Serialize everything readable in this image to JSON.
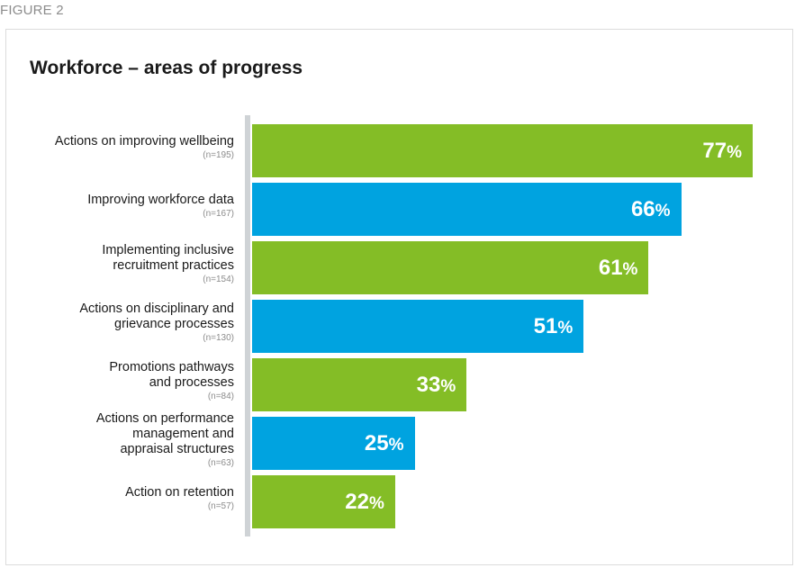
{
  "figure_label": "FIGURE 2",
  "chart_data": {
    "type": "bar",
    "orientation": "horizontal",
    "title": "Workforce – areas of progress",
    "xlim": [
      0,
      100
    ],
    "grid": false,
    "value_suffix": "%",
    "categories": [
      {
        "label_lines": [
          "Actions on improving wellbeing"
        ],
        "n": "(n=195)",
        "value": 77,
        "value_label": "77",
        "color": "#84bd26"
      },
      {
        "label_lines": [
          "Improving workforce data"
        ],
        "n": "(n=167)",
        "value": 66,
        "value_label": "66",
        "color": "#00a3e0"
      },
      {
        "label_lines": [
          "Implementing inclusive",
          "recruitment practices"
        ],
        "n": "(n=154)",
        "value": 61,
        "value_label": "61",
        "color": "#84bd26"
      },
      {
        "label_lines": [
          "Actions on disciplinary and",
          "grievance processes"
        ],
        "n": "(n=130)",
        "value": 51,
        "value_label": "51",
        "color": "#00a3e0"
      },
      {
        "label_lines": [
          "Promotions pathways",
          "and processes"
        ],
        "n": "(n=84)",
        "value": 33,
        "value_label": "33",
        "color": "#84bd26"
      },
      {
        "label_lines": [
          "Actions on performance",
          "management and",
          "appraisal structures"
        ],
        "n": "(n=63)",
        "value": 25,
        "value_label": "25",
        "color": "#00a3e0"
      },
      {
        "label_lines": [
          "Action on retention"
        ],
        "n": "(n=57)",
        "value": 22,
        "value_label": "22",
        "color": "#84bd26"
      }
    ]
  }
}
